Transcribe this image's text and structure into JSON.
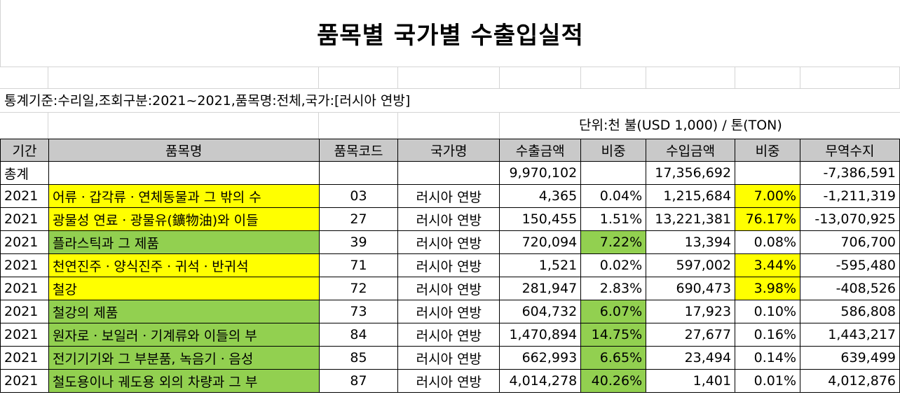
{
  "title": "품목별 국가별 수출입실적",
  "criteria": "통계기준:수리일,조회구분:2021~2021,품목명:전체,국가:[러시아 연방]",
  "unit": "단위:천 불(USD 1,000) / 톤(TON)",
  "colors": {
    "header_bg": "#c9c9c9",
    "highlight_yellow": "#ffff00",
    "highlight_green": "#92d050"
  },
  "headers": [
    "기간",
    "품목명",
    "품목코드",
    "국가명",
    "수출금액",
    "비중",
    "수입금액",
    "비중",
    "무역수지"
  ],
  "total": {
    "label": "총계",
    "export_amount": "9,970,102",
    "import_amount": "17,356,692",
    "trade_balance": "-7,386,591"
  },
  "rows": [
    {
      "period": "2021",
      "item": "어류ㆍ갑각류ㆍ연체동물과 그 밖의 수",
      "code": "03",
      "country": "러시아 연방",
      "export_amount": "4,365",
      "export_share": "0.04%",
      "import_amount": "1,215,684",
      "import_share": "7.00%",
      "trade_balance": "-1,211,319",
      "item_hl": "y",
      "export_share_hl": "",
      "import_share_hl": "y"
    },
    {
      "period": "2021",
      "item": "광물성 연료ㆍ광물유(鑛物油)와 이들",
      "code": "27",
      "country": "러시아 연방",
      "export_amount": "150,455",
      "export_share": "1.51%",
      "import_amount": "13,221,381",
      "import_share": "76.17%",
      "trade_balance": "-13,070,925",
      "item_hl": "y",
      "export_share_hl": "",
      "import_share_hl": "y"
    },
    {
      "period": "2021",
      "item": "플라스틱과 그 제품",
      "code": "39",
      "country": "러시아 연방",
      "export_amount": "720,094",
      "export_share": "7.22%",
      "import_amount": "13,394",
      "import_share": "0.08%",
      "trade_balance": "706,700",
      "item_hl": "g",
      "export_share_hl": "g",
      "import_share_hl": ""
    },
    {
      "period": "2021",
      "item": "천연진주ㆍ양식진주ㆍ귀석ㆍ반귀석",
      "code": "71",
      "country": "러시아 연방",
      "export_amount": "1,521",
      "export_share": "0.02%",
      "import_amount": "597,002",
      "import_share": "3.44%",
      "trade_balance": "-595,480",
      "item_hl": "y",
      "export_share_hl": "",
      "import_share_hl": "y"
    },
    {
      "period": "2021",
      "item": "철강",
      "code": "72",
      "country": "러시아 연방",
      "export_amount": "281,947",
      "export_share": "2.83%",
      "import_amount": "690,473",
      "import_share": "3.98%",
      "trade_balance": "-408,526",
      "item_hl": "y",
      "export_share_hl": "",
      "import_share_hl": "y"
    },
    {
      "period": "2021",
      "item": "철강의 제품",
      "code": "73",
      "country": "러시아 연방",
      "export_amount": "604,732",
      "export_share": "6.07%",
      "import_amount": "17,923",
      "import_share": "0.10%",
      "trade_balance": "586,808",
      "item_hl": "g",
      "export_share_hl": "g",
      "import_share_hl": ""
    },
    {
      "period": "2021",
      "item": "원자로ㆍ보일러ㆍ기계류와 이들의 부",
      "code": "84",
      "country": "러시아 연방",
      "export_amount": "1,470,894",
      "export_share": "14.75%",
      "import_amount": "27,677",
      "import_share": "0.16%",
      "trade_balance": "1,443,217",
      "item_hl": "g",
      "export_share_hl": "g",
      "import_share_hl": ""
    },
    {
      "period": "2021",
      "item": "전기기기와 그 부분품, 녹음기ㆍ음성",
      "code": "85",
      "country": "러시아 연방",
      "export_amount": "662,993",
      "export_share": "6.65%",
      "import_amount": "23,494",
      "import_share": "0.14%",
      "trade_balance": "639,499",
      "item_hl": "g",
      "export_share_hl": "g",
      "import_share_hl": ""
    },
    {
      "period": "2021",
      "item": "철도용이나 궤도용 외의 차량과 그 부",
      "code": "87",
      "country": "러시아 연방",
      "export_amount": "4,014,278",
      "export_share": "40.26%",
      "import_amount": "1,401",
      "import_share": "0.01%",
      "trade_balance": "4,012,876",
      "item_hl": "g",
      "export_share_hl": "g",
      "import_share_hl": ""
    }
  ]
}
